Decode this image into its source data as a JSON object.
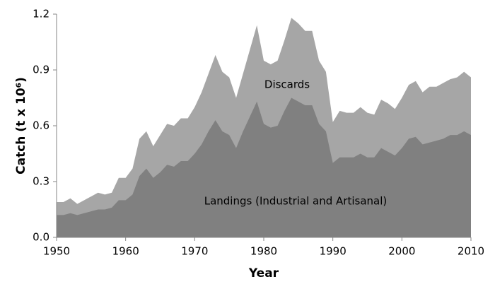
{
  "chart_data": {
    "type": "stacked_area",
    "y_label": "Catch (t x 10⁶)",
    "x_label": "Year",
    "x": [
      1950,
      1951,
      1952,
      1953,
      1954,
      1955,
      1956,
      1957,
      1958,
      1959,
      1960,
      1961,
      1962,
      1963,
      1964,
      1965,
      1966,
      1967,
      1968,
      1969,
      1970,
      1971,
      1972,
      1973,
      1974,
      1975,
      1976,
      1977,
      1978,
      1979,
      1980,
      1981,
      1982,
      1983,
      1984,
      1985,
      1986,
      1987,
      1988,
      1989,
      1990,
      1991,
      1992,
      1993,
      1994,
      1995,
      1996,
      1997,
      1998,
      1999,
      2000,
      2001,
      2002,
      2003,
      2004,
      2005,
      2006,
      2007,
      2008,
      2009,
      2010
    ],
    "series": [
      {
        "name": "Landings (Industrial and Artisanal)",
        "color": "#808080",
        "values": [
          0.12,
          0.12,
          0.13,
          0.12,
          0.13,
          0.14,
          0.15,
          0.15,
          0.16,
          0.2,
          0.2,
          0.23,
          0.33,
          0.37,
          0.32,
          0.35,
          0.39,
          0.38,
          0.41,
          0.41,
          0.45,
          0.5,
          0.57,
          0.63,
          0.57,
          0.55,
          0.48,
          0.57,
          0.65,
          0.73,
          0.61,
          0.59,
          0.6,
          0.68,
          0.75,
          0.73,
          0.71,
          0.71,
          0.61,
          0.57,
          0.4,
          0.43,
          0.43,
          0.43,
          0.45,
          0.43,
          0.43,
          0.48,
          0.46,
          0.44,
          0.48,
          0.53,
          0.54,
          0.5,
          0.51,
          0.52,
          0.53,
          0.55,
          0.55,
          0.57,
          0.55
        ]
      },
      {
        "name": "Discards",
        "color": "#a6a6a6",
        "values": [
          0.07,
          0.07,
          0.08,
          0.06,
          0.07,
          0.08,
          0.09,
          0.08,
          0.08,
          0.12,
          0.12,
          0.14,
          0.2,
          0.2,
          0.17,
          0.2,
          0.22,
          0.22,
          0.23,
          0.23,
          0.25,
          0.28,
          0.31,
          0.35,
          0.32,
          0.31,
          0.27,
          0.31,
          0.36,
          0.41,
          0.34,
          0.34,
          0.35,
          0.38,
          0.43,
          0.42,
          0.4,
          0.4,
          0.34,
          0.32,
          0.22,
          0.25,
          0.24,
          0.24,
          0.25,
          0.24,
          0.23,
          0.26,
          0.26,
          0.25,
          0.27,
          0.29,
          0.3,
          0.28,
          0.3,
          0.29,
          0.3,
          0.3,
          0.31,
          0.32,
          0.31
        ]
      }
    ],
    "xlim": [
      1950,
      2010
    ],
    "xticks": [
      1950,
      1960,
      1970,
      1980,
      1990,
      2000,
      2010
    ],
    "ylim": [
      0,
      1.2
    ],
    "yticks": [
      {
        "value": 0,
        "label": "0.0"
      },
      0.3,
      0.6,
      0.9,
      1.2
    ]
  }
}
